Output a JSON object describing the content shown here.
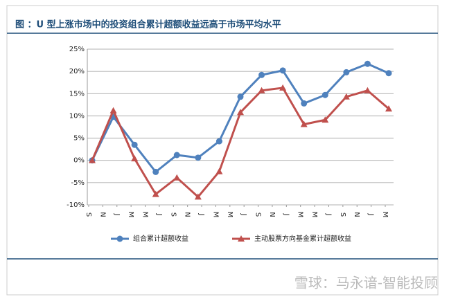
{
  "chart_data": {
    "type": "line",
    "title": "图 ：U 型上涨市场中的投资组合累计超额收益远高于市场平均水平",
    "watermark": "雪球：马永谙-智能投顾",
    "x": [
      0,
      3,
      6,
      9,
      12,
      15,
      18,
      21,
      24,
      27,
      30,
      33,
      36,
      39,
      42
    ],
    "xlim": [
      0,
      42
    ],
    "xticks": [
      {
        "value": 0,
        "label": "S"
      },
      {
        "value": 2,
        "label": "N"
      },
      {
        "value": 4,
        "label": "J"
      },
      {
        "value": 6,
        "label": "M"
      },
      {
        "value": 8,
        "label": "M"
      },
      {
        "value": 10,
        "label": "J"
      },
      {
        "value": 12,
        "label": "S"
      },
      {
        "value": 14,
        "label": "N"
      },
      {
        "value": 16,
        "label": "J"
      },
      {
        "value": 18,
        "label": "M"
      },
      {
        "value": 20,
        "label": "M"
      },
      {
        "value": 22,
        "label": "J"
      },
      {
        "value": 24,
        "label": "S"
      },
      {
        "value": 26,
        "label": "N"
      },
      {
        "value": 28,
        "label": "J"
      },
      {
        "value": 30,
        "label": "M"
      },
      {
        "value": 32,
        "label": "M"
      },
      {
        "value": 34,
        "label": "J"
      },
      {
        "value": 36,
        "label": "S"
      },
      {
        "value": 38,
        "label": "N"
      },
      {
        "value": 40,
        "label": "J"
      },
      {
        "value": 42,
        "label": "M"
      }
    ],
    "ylim": [
      -10,
      25
    ],
    "yticks": [
      {
        "value": -10,
        "label": "-10%"
      },
      {
        "value": -5,
        "label": "-5%"
      },
      {
        "value": 0,
        "label": "0%"
      },
      {
        "value": 5,
        "label": "5%"
      },
      {
        "value": 10,
        "label": "10%"
      },
      {
        "value": 15,
        "label": "15%"
      },
      {
        "value": 20,
        "label": "20%"
      },
      {
        "value": 25,
        "label": "25%"
      }
    ],
    "grid": true,
    "series": [
      {
        "name": "组合累计超额收益",
        "color": "#4f81bd",
        "marker": "circle",
        "values": [
          0,
          9.8,
          3.5,
          -2.6,
          1.2,
          0.6,
          4.3,
          14.3,
          19.2,
          20.2,
          12.8,
          14.7,
          19.8,
          21.7,
          19.6
        ]
      },
      {
        "name": "主动股票方向基金累计超额收益",
        "color": "#c0504d",
        "marker": "triangle",
        "values": [
          0,
          11.2,
          0.4,
          -7.6,
          -3.9,
          -8.2,
          -2.5,
          10.8,
          15.7,
          16.3,
          8.1,
          9.1,
          14.3,
          15.7,
          11.6
        ]
      }
    ]
  }
}
